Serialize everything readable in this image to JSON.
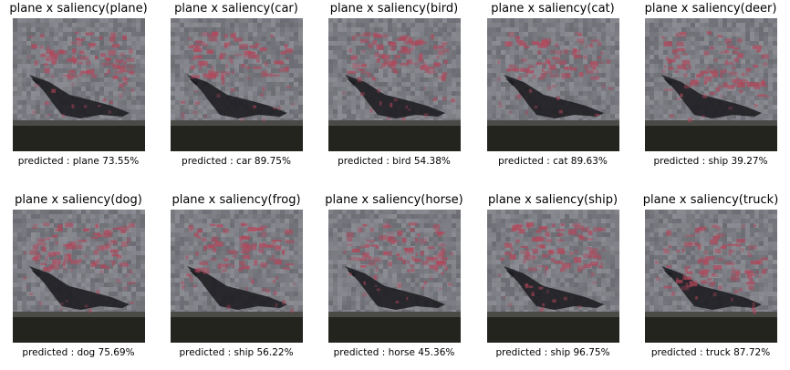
{
  "panels": [
    {
      "title": "plane x saliency(plane)",
      "caption": "predicted : plane 73.55%"
    },
    {
      "title": "plane x saliency(car)",
      "caption": "predicted : car 89.75%"
    },
    {
      "title": "plane x saliency(bird)",
      "caption": "predicted : bird 54.38%"
    },
    {
      "title": "plane x saliency(cat)",
      "caption": "predicted : cat 89.63%"
    },
    {
      "title": "plane x saliency(deer)",
      "caption": "predicted : ship 39.27%"
    },
    {
      "title": "plane x saliency(dog)",
      "caption": "predicted : dog 75.69%"
    },
    {
      "title": "plane x saliency(frog)",
      "caption": "predicted : ship 56.22%"
    },
    {
      "title": "plane x saliency(horse)",
      "caption": "predicted : horse 45.36%"
    },
    {
      "title": "plane x saliency(ship)",
      "caption": "predicted : ship 96.75%"
    },
    {
      "title": "plane x saliency(truck)",
      "caption": "predicted : truck 87.72%"
    }
  ],
  "colors": {
    "background": "#ffffff",
    "image_sky": "#7a7b83",
    "image_floor": "#24241f",
    "bird": "#1e1e22",
    "saliency": "#b4465a"
  }
}
